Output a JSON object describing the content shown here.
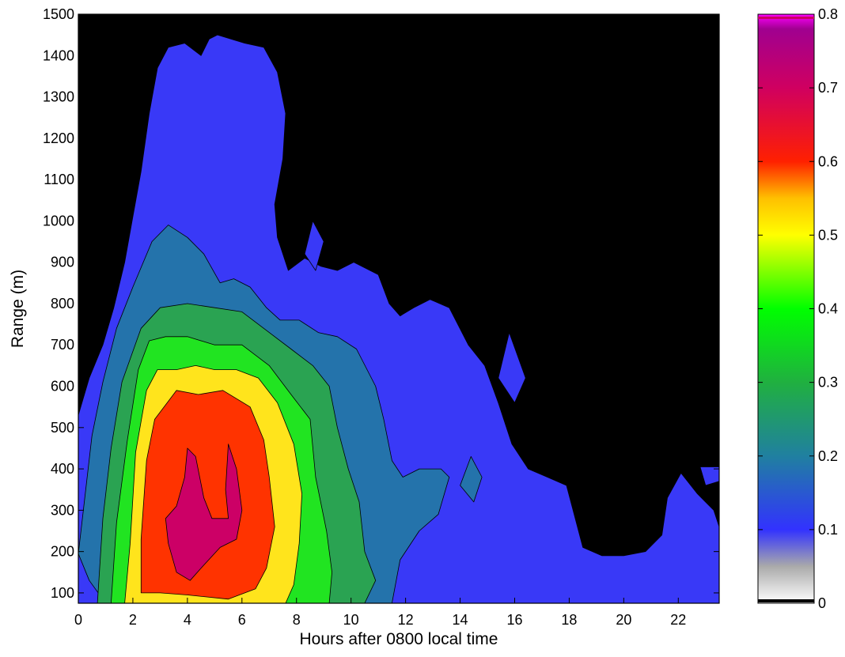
{
  "chart_data": {
    "type": "contour",
    "xlabel": "Hours after 0800 local time",
    "ylabel": "Range (m)",
    "xlim": [
      0,
      23.5
    ],
    "ylim": [
      75,
      1500
    ],
    "xticks": [
      "0",
      "2",
      "4",
      "6",
      "8",
      "10",
      "12",
      "14",
      "16",
      "18",
      "20",
      "22"
    ],
    "yticks": [
      "100",
      "200",
      "300",
      "400",
      "500",
      "600",
      "700",
      "800",
      "900",
      "1000",
      "1100",
      "1200",
      "1300",
      "1400",
      "1500"
    ],
    "background_color": "#000000",
    "colorbar": {
      "range": [
        0,
        0.8
      ],
      "ticks": [
        "0",
        "0.1",
        "0.2",
        "0.3",
        "0.4",
        "0.5",
        "0.6",
        "0.7",
        "0.8"
      ],
      "stops": [
        {
          "v": 0.0,
          "color": "#ffffff"
        },
        {
          "v": 0.05,
          "color": "#aaaaaa"
        },
        {
          "v": 0.1,
          "color": "#3232ff"
        },
        {
          "v": 0.2,
          "color": "#2080a0"
        },
        {
          "v": 0.3,
          "color": "#20b040"
        },
        {
          "v": 0.4,
          "color": "#00ff00"
        },
        {
          "v": 0.5,
          "color": "#ffff00"
        },
        {
          "v": 0.55,
          "color": "#ffc000"
        },
        {
          "v": 0.6,
          "color": "#ff2000"
        },
        {
          "v": 0.7,
          "color": "#d00060"
        },
        {
          "v": 0.78,
          "color": "#a00090"
        },
        {
          "v": 0.8,
          "color": "#ff00ff"
        }
      ]
    },
    "levels": [
      {
        "level": 0.1,
        "color": "#3939f7",
        "polygons": [
          [
            [
              0,
              530
            ],
            [
              0.4,
              620
            ],
            [
              0.9,
              700
            ],
            [
              1.3,
              790
            ],
            [
              1.7,
              900
            ],
            [
              2.0,
              1010
            ],
            [
              2.3,
              1120
            ],
            [
              2.6,
              1260
            ],
            [
              2.9,
              1370
            ],
            [
              3.3,
              1420
            ],
            [
              3.9,
              1430
            ],
            [
              4.5,
              1400
            ],
            [
              4.8,
              1440
            ],
            [
              5.1,
              1450
            ],
            [
              5.6,
              1440
            ],
            [
              6.1,
              1430
            ],
            [
              6.8,
              1420
            ],
            [
              7.3,
              1360
            ],
            [
              7.6,
              1260
            ],
            [
              7.5,
              1150
            ],
            [
              7.2,
              1040
            ],
            [
              7.3,
              960
            ],
            [
              7.7,
              880
            ],
            [
              8.3,
              910
            ],
            [
              8.9,
              890
            ],
            [
              9.5,
              880
            ],
            [
              10.1,
              900
            ],
            [
              11.0,
              870
            ],
            [
              11.4,
              800
            ],
            [
              11.8,
              770
            ],
            [
              12.3,
              790
            ],
            [
              12.9,
              810
            ],
            [
              13.6,
              790
            ],
            [
              14.3,
              700
            ],
            [
              14.9,
              650
            ],
            [
              15.4,
              560
            ],
            [
              15.9,
              460
            ],
            [
              16.5,
              400
            ],
            [
              17.2,
              380
            ],
            [
              17.9,
              360
            ],
            [
              18.5,
              210
            ],
            [
              19.2,
              190
            ],
            [
              20.0,
              190
            ],
            [
              20.8,
              200
            ],
            [
              21.4,
              240
            ],
            [
              21.6,
              330
            ],
            [
              22.1,
              390
            ],
            [
              22.7,
              340
            ],
            [
              23.3,
              300
            ],
            [
              23.5,
              260
            ],
            [
              23.5,
              75
            ],
            [
              0,
              75
            ]
          ],
          [
            [
              22.8,
              405
            ],
            [
              23.5,
              405
            ],
            [
              23.5,
              370
            ],
            [
              23.0,
              360
            ]
          ],
          [
            [
              15.8,
              730
            ],
            [
              16.4,
              620
            ],
            [
              16.0,
              560
            ],
            [
              15.4,
              620
            ]
          ],
          [
            [
              8.6,
              1000
            ],
            [
              9.0,
              950
            ],
            [
              8.7,
              880
            ],
            [
              8.3,
              920
            ]
          ]
        ]
      },
      {
        "level": 0.2,
        "color": "#2473ab",
        "polygons": [
          [
            [
              0,
              195
            ],
            [
              0.5,
              480
            ],
            [
              0.9,
              610
            ],
            [
              1.4,
              740
            ],
            [
              2.0,
              840
            ],
            [
              2.7,
              950
            ],
            [
              3.3,
              990
            ],
            [
              4.0,
              960
            ],
            [
              4.6,
              920
            ],
            [
              5.2,
              850
            ],
            [
              5.7,
              860
            ],
            [
              6.3,
              840
            ],
            [
              6.9,
              790
            ],
            [
              7.4,
              760
            ],
            [
              8.1,
              760
            ],
            [
              8.8,
              730
            ],
            [
              9.5,
              720
            ],
            [
              10.2,
              690
            ],
            [
              10.9,
              600
            ],
            [
              11.2,
              520
            ],
            [
              11.5,
              420
            ],
            [
              11.9,
              380
            ],
            [
              12.5,
              400
            ],
            [
              13.3,
              400
            ],
            [
              13.6,
              380
            ],
            [
              13.2,
              290
            ],
            [
              12.5,
              250
            ],
            [
              11.8,
              180
            ],
            [
              11.5,
              75
            ],
            [
              1.0,
              75
            ],
            [
              0.4,
              130
            ]
          ],
          [
            [
              14.0,
              360
            ],
            [
              14.4,
              430
            ],
            [
              14.8,
              380
            ],
            [
              14.5,
              320
            ]
          ]
        ]
      },
      {
        "level": 0.3,
        "color": "#2aa352",
        "polygons": [
          [
            [
              0.7,
              75
            ],
            [
              0.9,
              280
            ],
            [
              1.2,
              450
            ],
            [
              1.6,
              610
            ],
            [
              2.3,
              740
            ],
            [
              3.0,
              790
            ],
            [
              4.0,
              800
            ],
            [
              5.0,
              790
            ],
            [
              6.0,
              780
            ],
            [
              7.0,
              730
            ],
            [
              7.8,
              690
            ],
            [
              8.6,
              650
            ],
            [
              9.2,
              600
            ],
            [
              9.5,
              500
            ],
            [
              9.9,
              400
            ],
            [
              10.3,
              320
            ],
            [
              10.5,
              200
            ],
            [
              10.9,
              130
            ],
            [
              10.5,
              75
            ]
          ]
        ]
      },
      {
        "level": 0.4,
        "color": "#21e421",
        "polygons": [
          [
            [
              1.2,
              75
            ],
            [
              1.4,
              270
            ],
            [
              1.8,
              470
            ],
            [
              2.2,
              640
            ],
            [
              2.6,
              710
            ],
            [
              3.2,
              720
            ],
            [
              4.0,
              720
            ],
            [
              5.0,
              700
            ],
            [
              6.0,
              700
            ],
            [
              7.0,
              650
            ],
            [
              7.8,
              580
            ],
            [
              8.5,
              520
            ],
            [
              8.7,
              380
            ],
            [
              9.1,
              250
            ],
            [
              9.3,
              150
            ],
            [
              9.2,
              75
            ]
          ]
        ]
      },
      {
        "level": 0.5,
        "color": "#ffe41c",
        "polygons": [
          [
            [
              1.7,
              75
            ],
            [
              1.9,
              220
            ],
            [
              2.1,
              440
            ],
            [
              2.5,
              590
            ],
            [
              2.9,
              640
            ],
            [
              3.6,
              640
            ],
            [
              4.3,
              650
            ],
            [
              5.0,
              640
            ],
            [
              5.8,
              640
            ],
            [
              6.6,
              620
            ],
            [
              7.3,
              560
            ],
            [
              7.9,
              460
            ],
            [
              8.2,
              340
            ],
            [
              8.1,
              220
            ],
            [
              7.9,
              120
            ],
            [
              7.6,
              75
            ]
          ]
        ]
      },
      {
        "level": 0.6,
        "color": "#ff3300",
        "polygons": [
          [
            [
              2.3,
              100
            ],
            [
              2.3,
              230
            ],
            [
              2.5,
              420
            ],
            [
              2.8,
              520
            ],
            [
              3.6,
              590
            ],
            [
              4.4,
              580
            ],
            [
              5.3,
              590
            ],
            [
              6.3,
              550
            ],
            [
              6.8,
              470
            ],
            [
              7.0,
              380
            ],
            [
              7.2,
              260
            ],
            [
              6.9,
              160
            ],
            [
              6.5,
              110
            ],
            [
              5.5,
              85
            ],
            [
              4.0,
              95
            ],
            [
              3.0,
              100
            ]
          ]
        ]
      },
      {
        "level": 0.7,
        "color": "#cc0066",
        "polygons": [
          [
            [
              3.2,
              280
            ],
            [
              3.6,
              310
            ],
            [
              3.9,
              380
            ],
            [
              4.0,
              450
            ],
            [
              4.3,
              430
            ],
            [
              4.6,
              330
            ],
            [
              4.9,
              280
            ],
            [
              5.5,
              280
            ],
            [
              5.4,
              350
            ],
            [
              5.5,
              460
            ],
            [
              5.8,
              400
            ],
            [
              6.0,
              300
            ],
            [
              5.8,
              230
            ],
            [
              5.2,
              210
            ],
            [
              4.5,
              160
            ],
            [
              4.1,
              130
            ],
            [
              3.6,
              150
            ],
            [
              3.3,
              220
            ]
          ]
        ]
      }
    ]
  }
}
